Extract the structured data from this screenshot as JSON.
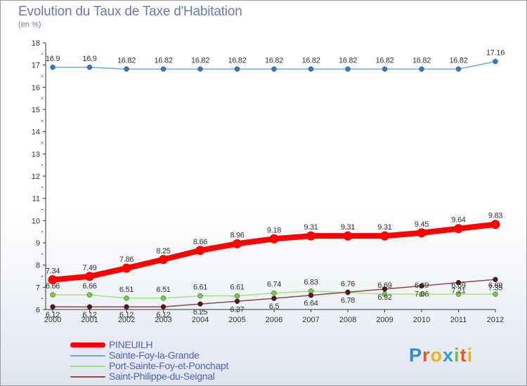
{
  "header": {
    "title": "Evolution du Taux de Taxe d'Habitation",
    "subtitle": "(en %)"
  },
  "logo": {
    "text": "Proxiti",
    "colors": [
      "#3a86c8",
      "#e8562a",
      "#f0b21a",
      "#2f9fd8",
      "#7cb83a",
      "#e8562a",
      "#f0b21a"
    ]
  },
  "chart_data": {
    "type": "line",
    "x": [
      2000,
      2001,
      2002,
      2003,
      2004,
      2005,
      2006,
      2007,
      2008,
      2009,
      2010,
      2011,
      2012
    ],
    "ylim": [
      6,
      18
    ],
    "yticks": [
      6,
      7,
      8,
      9,
      10,
      11,
      12,
      13,
      14,
      15,
      16,
      17,
      18
    ],
    "grid": false,
    "legend_position": "bottom-left",
    "series": [
      {
        "name": "PINEUILH",
        "color": "#ff0000",
        "marker_color": "#ff0000",
        "values": [
          7.34,
          7.49,
          7.86,
          8.25,
          8.66,
          8.96,
          9.18,
          9.31,
          9.31,
          9.31,
          9.45,
          9.64,
          9.83
        ],
        "labels": [
          "7.34",
          "7.49",
          "7.86",
          "8.25",
          "8.66",
          "8.96",
          "9.18",
          "9.31",
          "9.31",
          "9.31",
          "9.45",
          "9.64",
          "9.83"
        ]
      },
      {
        "name": "Sainte-Foy-la-Grande",
        "color": "#6ea9dd",
        "marker_color": "#2f7bbd",
        "values": [
          16.9,
          16.9,
          16.82,
          16.82,
          16.82,
          16.82,
          16.82,
          16.82,
          16.82,
          16.82,
          16.82,
          16.82,
          17.16
        ],
        "labels": [
          "16.9",
          "16.9",
          "16.82",
          "16.82",
          "16.82",
          "16.82",
          "16.82",
          "16.82",
          "16.82",
          "16.82",
          "16.82",
          "16.82",
          "17.16"
        ]
      },
      {
        "name": "Port-Sainte-Foy-et-Ponchapt",
        "color": "#a6e07a",
        "marker_color": "#74cc3c",
        "values": [
          6.66,
          6.66,
          6.51,
          6.51,
          6.61,
          6.61,
          6.74,
          6.83,
          6.76,
          6.69,
          6.69,
          6.69,
          6.69
        ],
        "labels": [
          "6.66",
          "6.66",
          "6.51",
          "6.51",
          "6.61",
          "6.61",
          "6.74",
          "6.83",
          "6.76",
          "6.69",
          "6.69",
          "6.69",
          "6.69"
        ]
      },
      {
        "name": "Saint-Philippe-du-Seignal",
        "color": "#8a4a4a",
        "marker_color": "#5a1414",
        "values": [
          6.12,
          6.12,
          6.12,
          6.12,
          6.25,
          6.37,
          6.5,
          6.64,
          6.78,
          6.92,
          7.06,
          7.21,
          7.35
        ],
        "labels": [
          "6.12",
          "6.12",
          "6.12",
          "6.12",
          "6.25",
          "6.37",
          "6.5",
          "6.64",
          "6.78",
          "6.92",
          "7.06",
          "7.21",
          "7.35"
        ]
      }
    ]
  }
}
